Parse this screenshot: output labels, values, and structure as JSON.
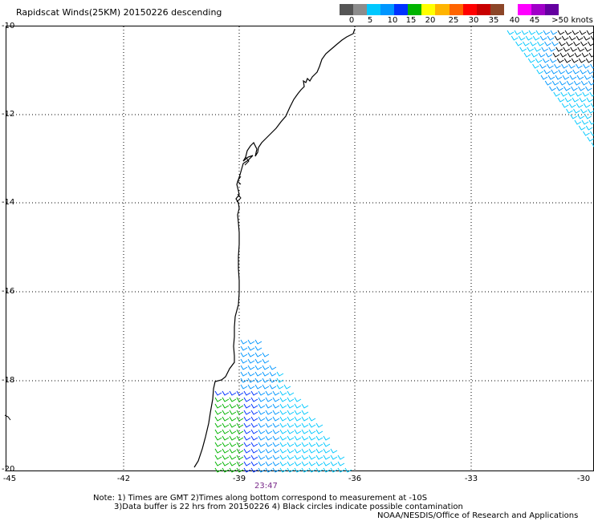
{
  "title": "Rapidscat Winds(25KM) 20150226 descending",
  "legend": {
    "labels": [
      "0",
      "5",
      "10",
      "15",
      "20",
      "25",
      "30",
      "35",
      "40",
      "45",
      ">50 knots"
    ],
    "colors": [
      "#555555",
      "#8c8c8c",
      "#00c8ff",
      "#0096ff",
      "#0032ff",
      "#00b400",
      "#ffff00",
      "#ffb400",
      "#ff6400",
      "#ff0000",
      "#c80000",
      "#8c4628",
      "#ffffff",
      "#ff00ff",
      "#a000c8",
      "#6400a0"
    ]
  },
  "axes": {
    "lat_ticks": [
      "-10",
      "-12",
      "-14",
      "-16",
      "-18",
      "-20"
    ],
    "lon_ticks": [
      "-45",
      "-42",
      "-39",
      "-36",
      "-33",
      "-30"
    ],
    "lon_range": [
      -45,
      -30
    ],
    "lat_range": [
      -20,
      -10
    ],
    "grid": "dotted"
  },
  "time_label": "23:47",
  "notes": {
    "line1": "Note: 1) Times are GMT 2)Times along bottom correspond to measurement at -10S",
    "line2": "3)Data buffer is 22 hrs from 20150226 4) Black circles indicate possible contamination",
    "line3": "NOAA/NESDIS/Office of Research and Applications"
  },
  "wind_colors": {
    "light": "#00c8ff",
    "blue": "#0096ff",
    "dark": "#0032ff",
    "green": "#00b400",
    "black": "#000000"
  }
}
